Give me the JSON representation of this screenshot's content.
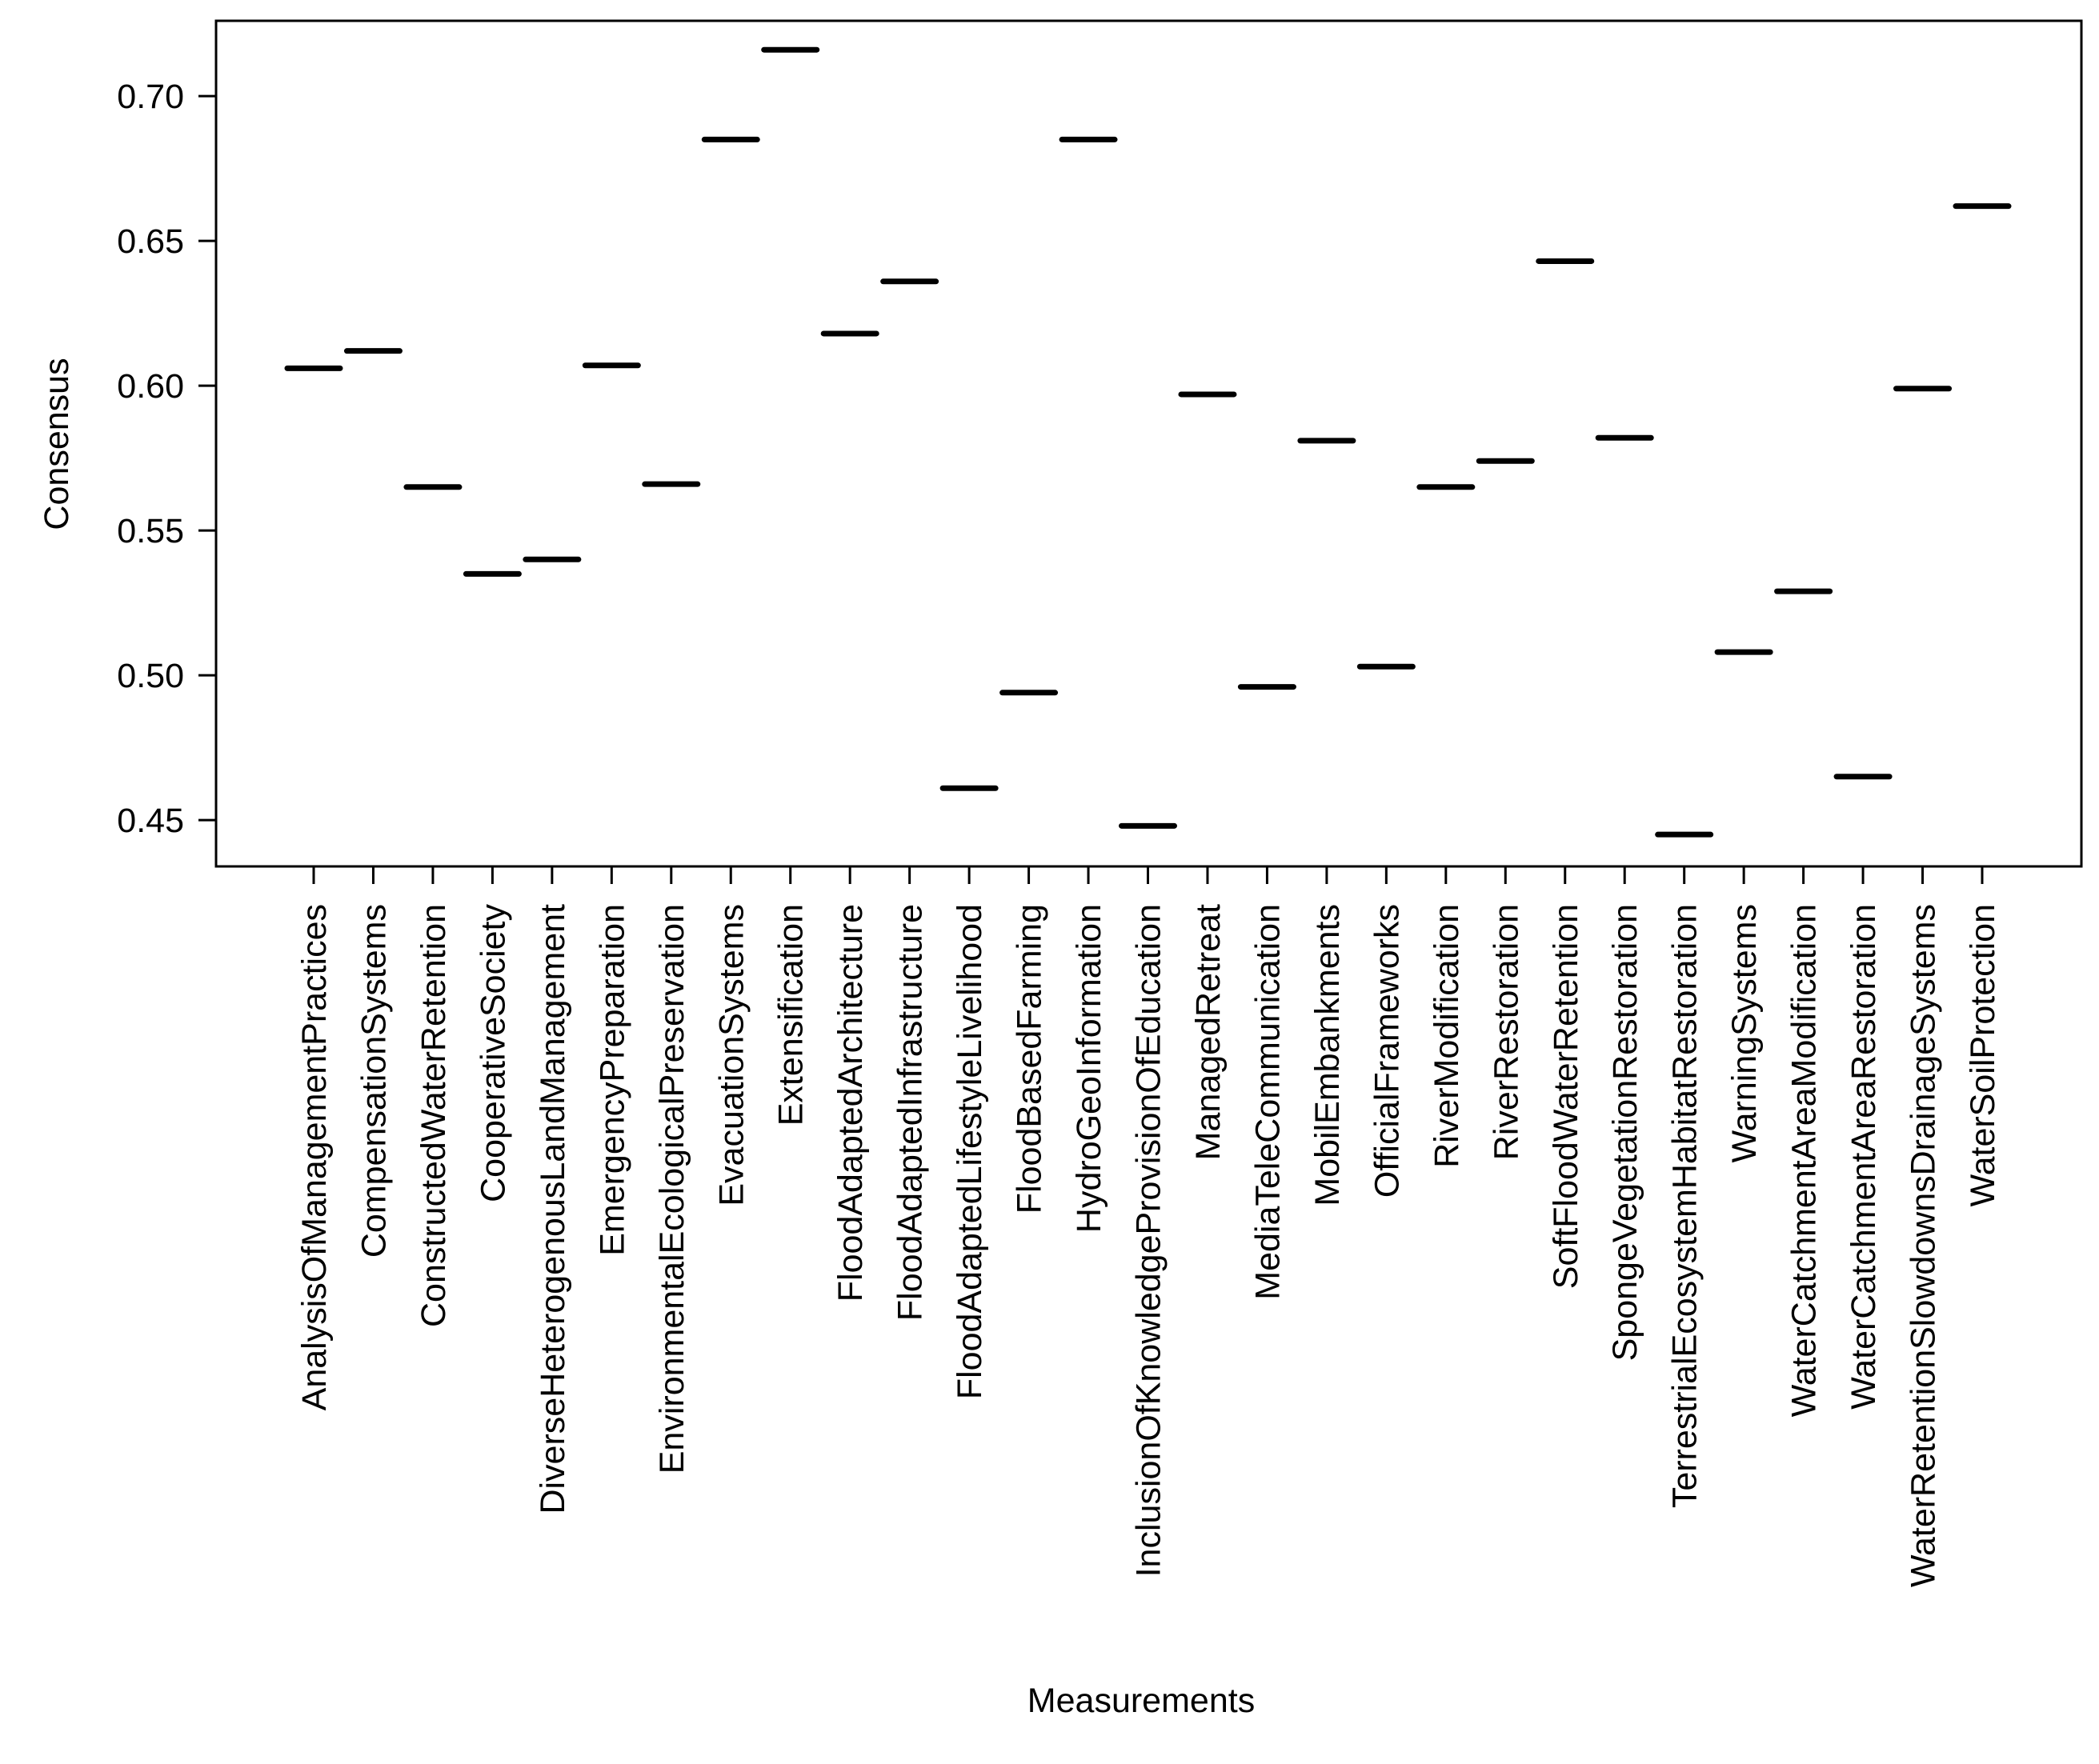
{
  "chart_data": {
    "type": "scatter",
    "marker": "horizontal-bar",
    "xlabel": "Measurements",
    "ylabel": "Consensus",
    "ylim": [
      0.434,
      0.726
    ],
    "yticks": [
      0.45,
      0.5,
      0.55,
      0.6,
      0.65,
      0.7
    ],
    "ytick_labels": [
      "0.45",
      "0.50",
      "0.55",
      "0.60",
      "0.65",
      "0.70"
    ],
    "categories": [
      "AnalysisOfManagementPractices",
      "CompensationSystems",
      "ConstructedWaterRetention",
      "CooperativeSociety",
      "DiverseHeterogenousLandManagement",
      "EmergencyPreparation",
      "EnvironmentalEcologicalPreservation",
      "EvacuationSystems",
      "Extensification",
      "FloodAdaptedArchitecture",
      "FloodAdaptedInfrastructure",
      "FloodAdaptedLifestyleLivelihood",
      "FloodBasedFarming",
      "HydroGeoInformation",
      "InclusionOfKnowledgeProvisionOfEducation",
      "ManagedRetreat",
      "MediaTeleCommunication",
      "MobilEmbankments",
      "OfficialFrameworks",
      "RiverModification",
      "RiverRestoration",
      "SoftFloodWaterRetention",
      "SpongeVegetationRestoration",
      "TerrestrialEcosystemHabitatRestoration",
      "WarningSystems",
      "WaterCatchmentAreaModification",
      "WaterCatchmentAreaRestoration",
      "WaterRetentionSlowdownsDrainageSystems",
      "WaterSoilProtection"
    ],
    "values": [
      0.606,
      0.612,
      0.565,
      0.535,
      0.54,
      0.607,
      0.566,
      0.685,
      0.716,
      0.618,
      0.636,
      0.461,
      0.494,
      0.685,
      0.448,
      0.597,
      0.496,
      0.581,
      0.503,
      0.565,
      0.574,
      0.643,
      0.582,
      0.445,
      0.508,
      0.529,
      0.465,
      0.599,
      0.662
    ]
  }
}
